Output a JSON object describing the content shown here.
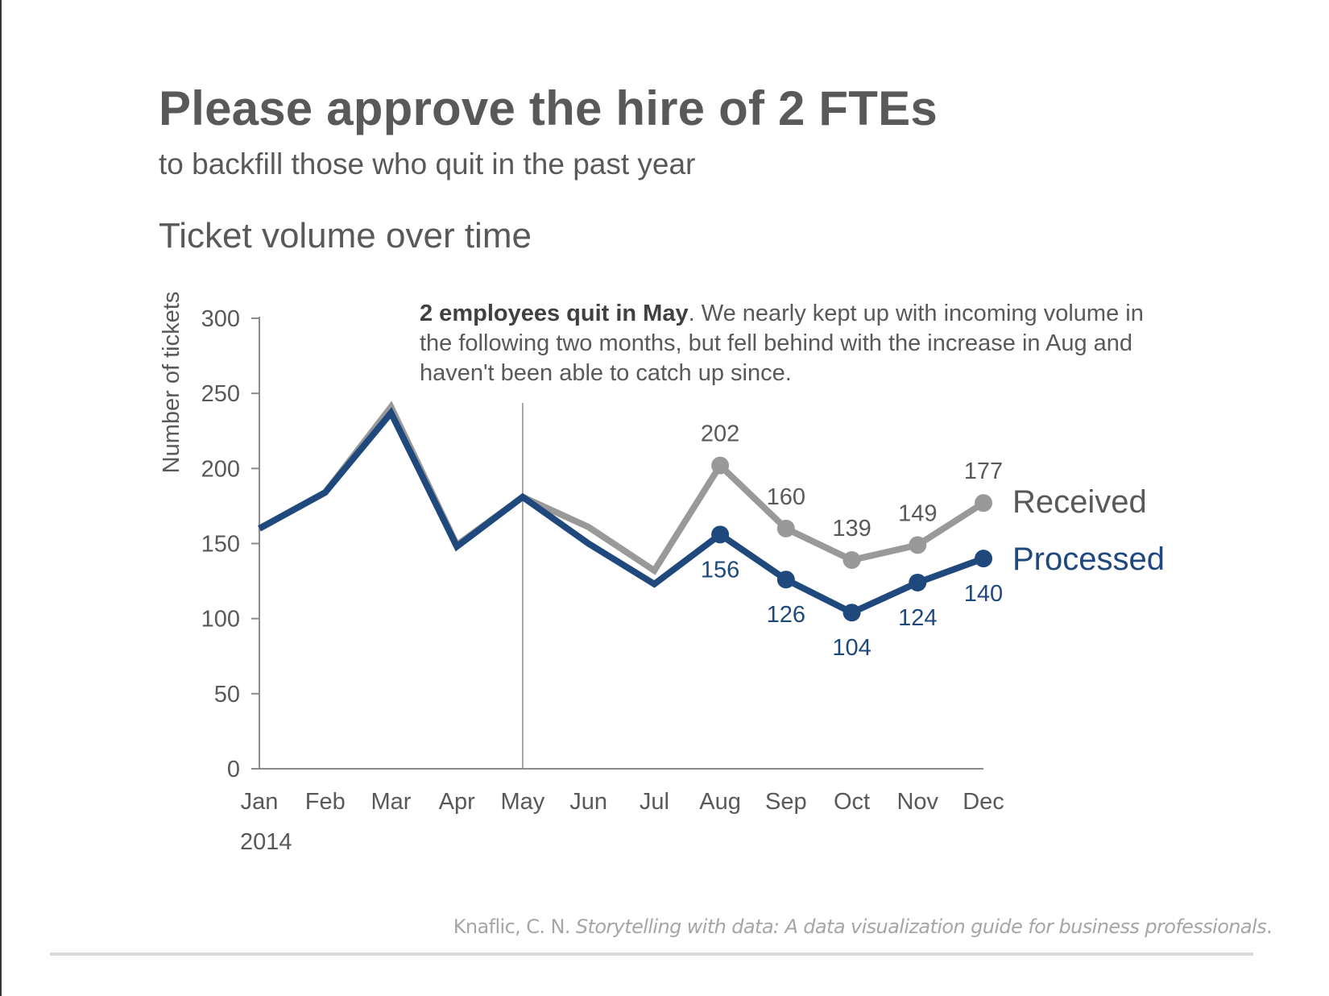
{
  "headline": "Please approve the hire of 2 FTEs",
  "subheadline": "to backfill those who quit in the past year",
  "annotation": {
    "bold": "2 employees quit in May",
    "rest": ". We nearly kept up with incoming volume in the following two months, but fell behind with the increase in Aug and haven't been able to catch up since."
  },
  "citation": {
    "author": "Knaflic, C. N. ",
    "title": "Storytelling with data: A data visualization guide for business professionals",
    "end": "."
  },
  "colors": {
    "received": "#999999",
    "processed": "#1f497d",
    "text": "#595959",
    "axis": "#8c8c8c"
  },
  "chart_data": {
    "type": "line",
    "title": "Ticket volume over time",
    "ylabel": "Number of tickets",
    "xlabel": "",
    "year_label": "2014",
    "categories": [
      "Jan",
      "Feb",
      "Mar",
      "Apr",
      "May",
      "Jun",
      "Jul",
      "Aug",
      "Sep",
      "Oct",
      "Nov",
      "Dec"
    ],
    "ylim": [
      0,
      300
    ],
    "yticks": [
      0,
      50,
      100,
      150,
      200,
      250,
      300
    ],
    "grid": false,
    "marker_line_category": "May",
    "series": [
      {
        "name": "Received",
        "color": "#999999",
        "values": [
          160,
          184,
          241,
          149,
          181,
          161,
          132,
          202,
          160,
          139,
          149,
          177
        ],
        "labeled_from": "Aug"
      },
      {
        "name": "Processed",
        "color": "#1f497d",
        "values": [
          160,
          184,
          237,
          148,
          181,
          150,
          123,
          156,
          126,
          104,
          124,
          140
        ],
        "labeled_from": "Aug"
      }
    ]
  }
}
